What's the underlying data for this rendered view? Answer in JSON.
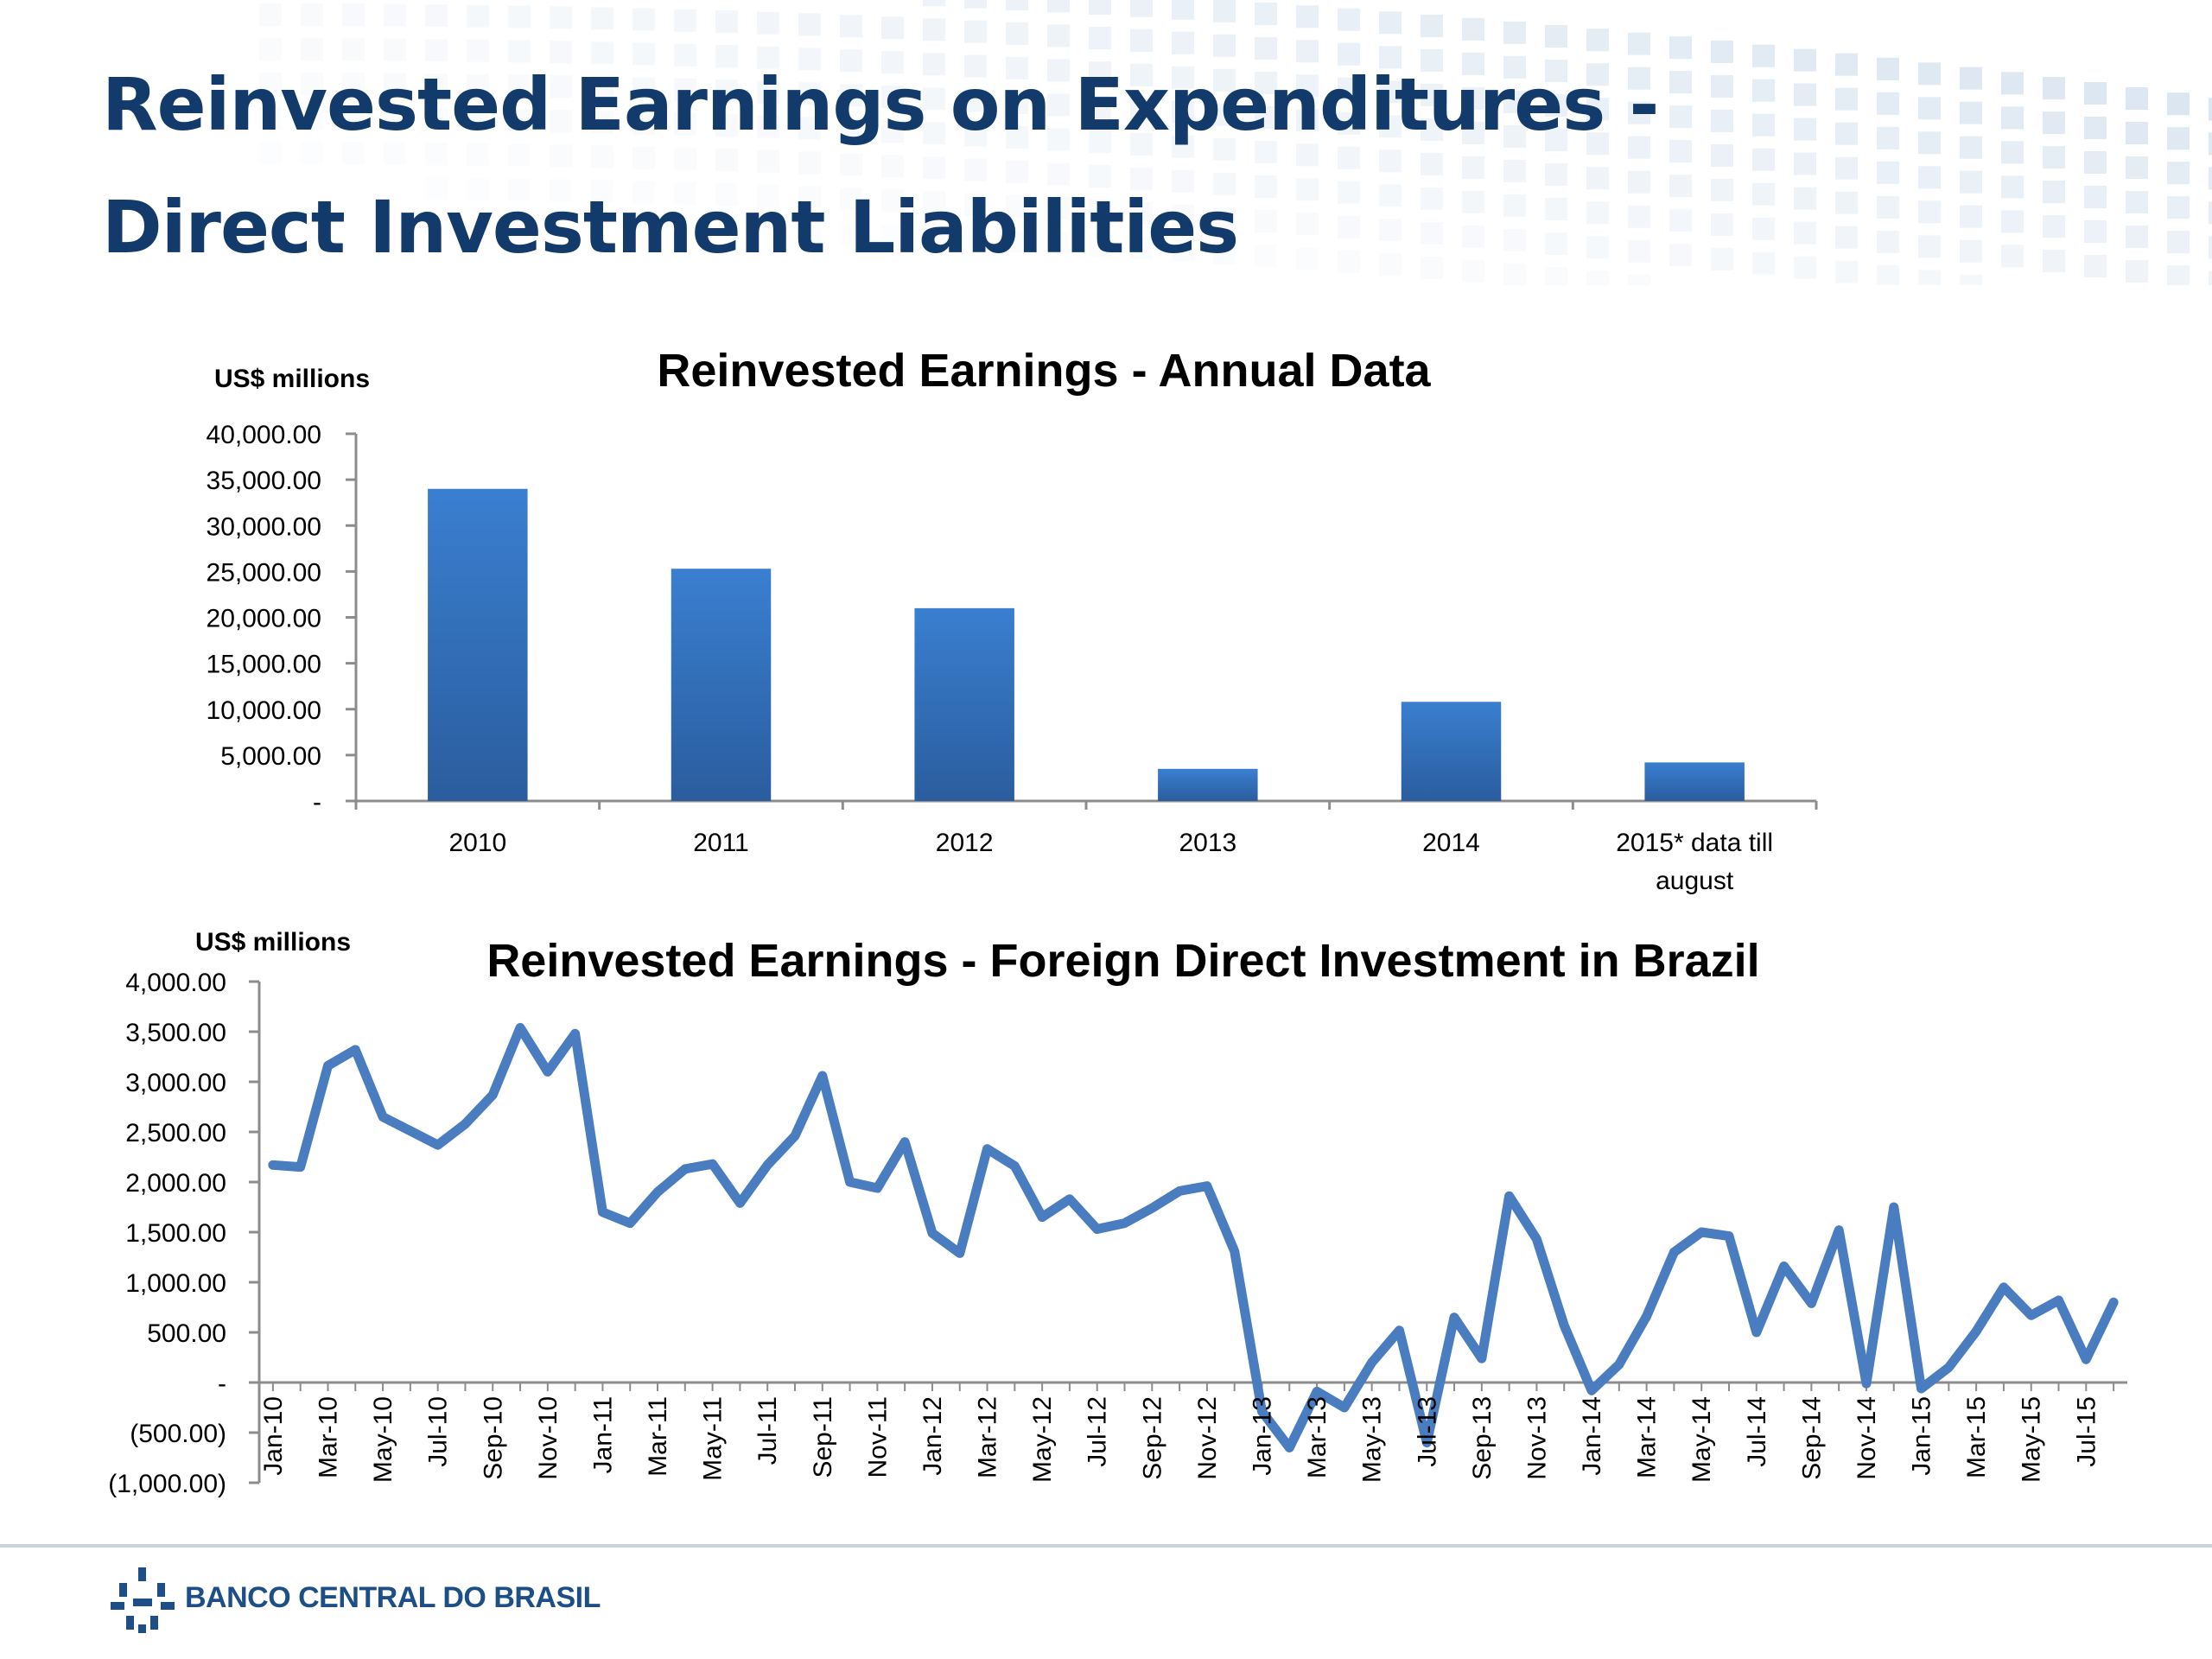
{
  "slide": {
    "title_line1": "Reinvested Earnings on Expenditures -",
    "title_line2": "Direct Investment Liabilities"
  },
  "footer": {
    "bank_name": "BANCO CENTRAL DO BRASIL",
    "logo_icon": "banco-central-logo-icon"
  },
  "colors": {
    "title": "#123b6b",
    "bar_top": "#3a7fd0",
    "bar_bottom": "#2a5d9e",
    "line": "#4a7cc0"
  },
  "chart_data": [
    {
      "type": "bar",
      "title": "Reinvested Earnings - Annual Data",
      "ylabel": "US$ millions",
      "categories": [
        "2010",
        "2011",
        "2012",
        "2013",
        "2014",
        "2015* data till august"
      ],
      "values": [
        34000,
        25300,
        21000,
        3500,
        10800,
        4200
      ],
      "ylim": [
        0,
        40000
      ],
      "yticks": [
        0,
        5000,
        10000,
        15000,
        20000,
        25000,
        30000,
        35000,
        40000
      ],
      "ytick_labels": [
        "-",
        "5,000.00",
        "10,000.00",
        "15,000.00",
        "20,000.00",
        "25,000.00",
        "30,000.00",
        "35,000.00",
        "40,000.00"
      ],
      "grid": false,
      "legend": "none"
    },
    {
      "type": "line",
      "title": "Reinvested Earnings - Foreign Direct Investment in Brazil",
      "ylabel": "US$ millions",
      "x": [
        "Jan-10",
        "Feb-10",
        "Mar-10",
        "Apr-10",
        "May-10",
        "Jun-10",
        "Jul-10",
        "Aug-10",
        "Sep-10",
        "Oct-10",
        "Nov-10",
        "Dec-10",
        "Jan-11",
        "Feb-11",
        "Mar-11",
        "Apr-11",
        "May-11",
        "Jun-11",
        "Jul-11",
        "Aug-11",
        "Sep-11",
        "Oct-11",
        "Nov-11",
        "Dec-11",
        "Jan-12",
        "Feb-12",
        "Mar-12",
        "Apr-12",
        "May-12",
        "Jun-12",
        "Jul-12",
        "Aug-12",
        "Sep-12",
        "Oct-12",
        "Nov-12",
        "Dec-12",
        "Jan-13",
        "Feb-13",
        "Mar-13",
        "Apr-13",
        "May-13",
        "Jun-13",
        "Jul-13",
        "Aug-13",
        "Sep-13",
        "Oct-13",
        "Nov-13",
        "Dec-13",
        "Jan-14",
        "Feb-14",
        "Mar-14",
        "Apr-14",
        "May-14",
        "Jun-14",
        "Jul-14",
        "Aug-14",
        "Sep-14",
        "Oct-14",
        "Nov-14",
        "Dec-14",
        "Jan-15",
        "Feb-15",
        "Mar-15",
        "Apr-15",
        "May-15",
        "Jun-15",
        "Jul-15",
        "Aug-15"
      ],
      "tick_labels": [
        "Jan-10",
        "Mar-10",
        "May-10",
        "Jul-10",
        "Sep-10",
        "Nov-10",
        "Jan-11",
        "Mar-11",
        "May-11",
        "Jul-11",
        "Sep-11",
        "Nov-11",
        "Jan-12",
        "Mar-12",
        "May-12",
        "Jul-12",
        "Sep-12",
        "Nov-12",
        "Jan-13",
        "Mar-13",
        "May-13",
        "Jul-13",
        "Sep-13",
        "Nov-13",
        "Jan-14",
        "Mar-14",
        "May-14",
        "Jul-14",
        "Sep-14",
        "Nov-14",
        "Jan-15",
        "Mar-15",
        "May-15",
        "Jul-15"
      ],
      "values": [
        2170,
        2150,
        3160,
        3320,
        2650,
        2510,
        2370,
        2580,
        2870,
        3540,
        3100,
        3480,
        1700,
        1590,
        1900,
        2130,
        2180,
        1790,
        2170,
        2460,
        3060,
        2000,
        1940,
        2400,
        1490,
        1290,
        2330,
        2160,
        1650,
        1830,
        1530,
        1590,
        1740,
        1910,
        1960,
        1310,
        -290,
        -650,
        -90,
        -250,
        200,
        520,
        -600,
        650,
        240,
        1860,
        1430,
        570,
        -80,
        180,
        660,
        1300,
        1500,
        1460,
        500,
        1160,
        790,
        1520,
        -10,
        1750,
        -60,
        150,
        510,
        950,
        670,
        820,
        230,
        800
      ],
      "ylim": [
        -1000,
        4000
      ],
      "yticks": [
        -1000,
        -500,
        0,
        500,
        1000,
        1500,
        2000,
        2500,
        3000,
        3500,
        4000
      ],
      "ytick_labels": [
        "(1,000.00)",
        "(500.00)",
        "-",
        "500.00",
        "1,000.00",
        "1,500.00",
        "2,000.00",
        "2,500.00",
        "3,000.00",
        "3,500.00",
        "4,000.00"
      ],
      "grid": false,
      "legend": "none"
    }
  ]
}
